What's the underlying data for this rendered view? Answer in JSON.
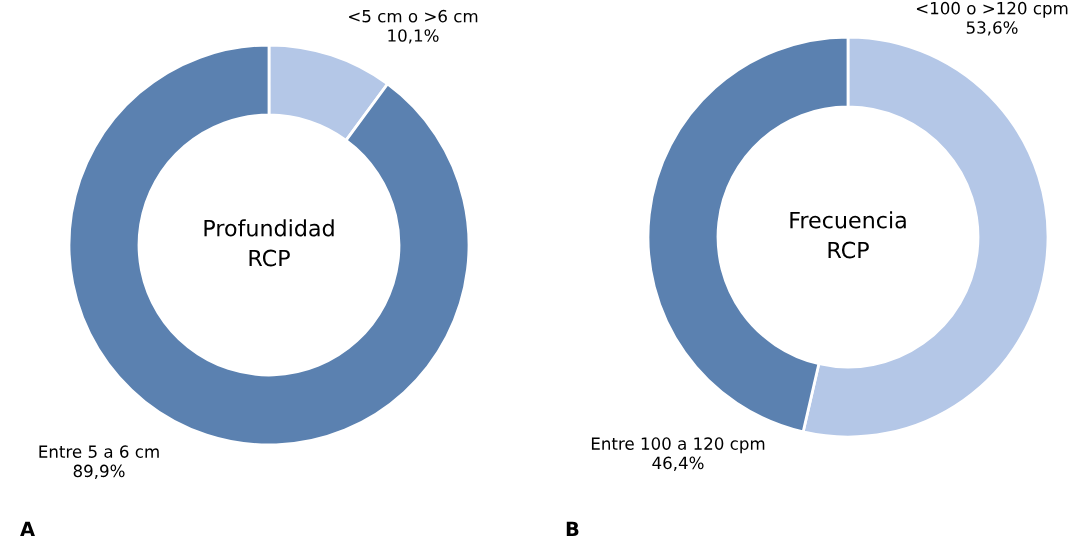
{
  "chart_data": [
    {
      "type": "donut",
      "title": "Profundidad\nRCP",
      "categories": [
        "<5 cm o >6 cm",
        "Entre 5 a 6 cm"
      ],
      "values": [
        10.1,
        89.9
      ],
      "value_labels": [
        "10,1%",
        "89,9%"
      ],
      "colors": [
        "#b4c7e7",
        "#5b81b0"
      ],
      "annotations": [
        "A"
      ]
    },
    {
      "type": "donut",
      "title": "Frecuencia\nRCP",
      "categories": [
        "<100 o >120 cpm",
        "Entre 100 a 120 cpm"
      ],
      "values": [
        53.6,
        46.4
      ],
      "value_labels": [
        "53,6%",
        "46,4%"
      ],
      "colors": [
        "#b4c7e7",
        "#5b81b0"
      ],
      "annotations": [
        "B"
      ]
    }
  ]
}
